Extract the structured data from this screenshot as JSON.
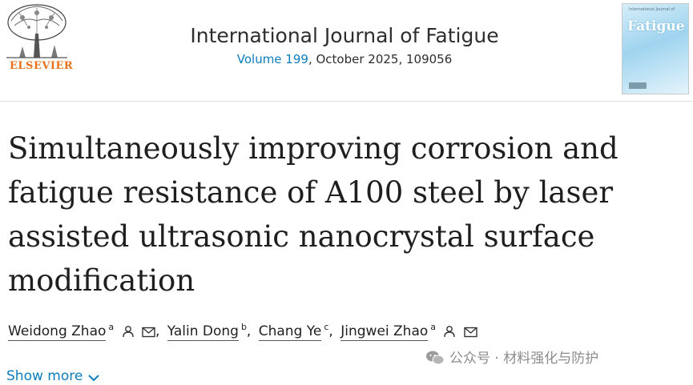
{
  "publisher": {
    "name": "ELSEVIER"
  },
  "journal": {
    "title": "International Journal of Fatigue",
    "volume_link": "Volume 199",
    "issue_info": ", October 2025, 109056",
    "cover_title": "Fatigue"
  },
  "article": {
    "title": "Simultaneously improving corrosion and fatigue resistance of A100 steel by laser assisted ultrasonic nanocrystal surface modification"
  },
  "authors": [
    {
      "name": "Weidong Zhao",
      "affiliation": "a",
      "separator": ",",
      "icons": [
        "person-icon",
        "mail-icon"
      ]
    },
    {
      "name": "Yalin Dong",
      "affiliation": "b",
      "separator": ",",
      "icons": []
    },
    {
      "name": "Chang Ye",
      "affiliation": "c",
      "separator": ",",
      "icons": []
    },
    {
      "name": "Jingwei Zhao",
      "affiliation": "a",
      "separator": "",
      "icons": [
        "person-icon",
        "mail-icon"
      ]
    }
  ],
  "show_more": {
    "label": "Show more",
    "icon": "chevron-down-icon"
  },
  "watermark": {
    "text": "公众号 · 材料强化与防护",
    "icon": "wechat-icon"
  },
  "colors": {
    "link": "#0c7dbb",
    "publisher_orange": "#e9711c",
    "text": "#1f1f1f"
  }
}
